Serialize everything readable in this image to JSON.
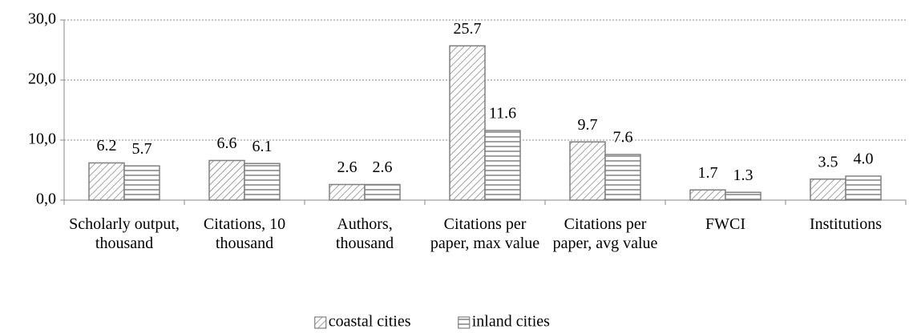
{
  "chart_data": {
    "type": "bar",
    "categories": [
      "Scholarly output, thousand",
      "Citations, 10 thousand",
      "Authors, thousand",
      "Citations per paper, max value",
      "Citations per paper, avg value",
      "FWCI",
      "Institutions"
    ],
    "series": [
      {
        "name": "coastal cities",
        "color": "#808080",
        "pattern": "diagonal",
        "values": [
          6.2,
          6.6,
          2.6,
          25.7,
          9.7,
          1.7,
          3.5
        ],
        "value_labels": [
          "6.2",
          "6.6",
          "2.6",
          "25.7",
          "9.7",
          "1.7",
          "3.5"
        ]
      },
      {
        "name": "inland cities",
        "color": "#808080",
        "pattern": "horizontal",
        "values": [
          5.7,
          6.1,
          2.6,
          11.6,
          7.6,
          1.3,
          4.0
        ],
        "value_labels": [
          "5.7",
          "6.1",
          "2.6",
          "11.6",
          "7.6",
          "1.3",
          "4.0"
        ]
      }
    ],
    "ylim": [
      0,
      30
    ],
    "yticks": [
      {
        "value": 0,
        "label": "0,0"
      },
      {
        "value": 10,
        "label": "10,0"
      },
      {
        "value": 20,
        "label": "20,0"
      },
      {
        "value": 30,
        "label": "30,0"
      }
    ],
    "grid": true,
    "legend": "bottom"
  }
}
